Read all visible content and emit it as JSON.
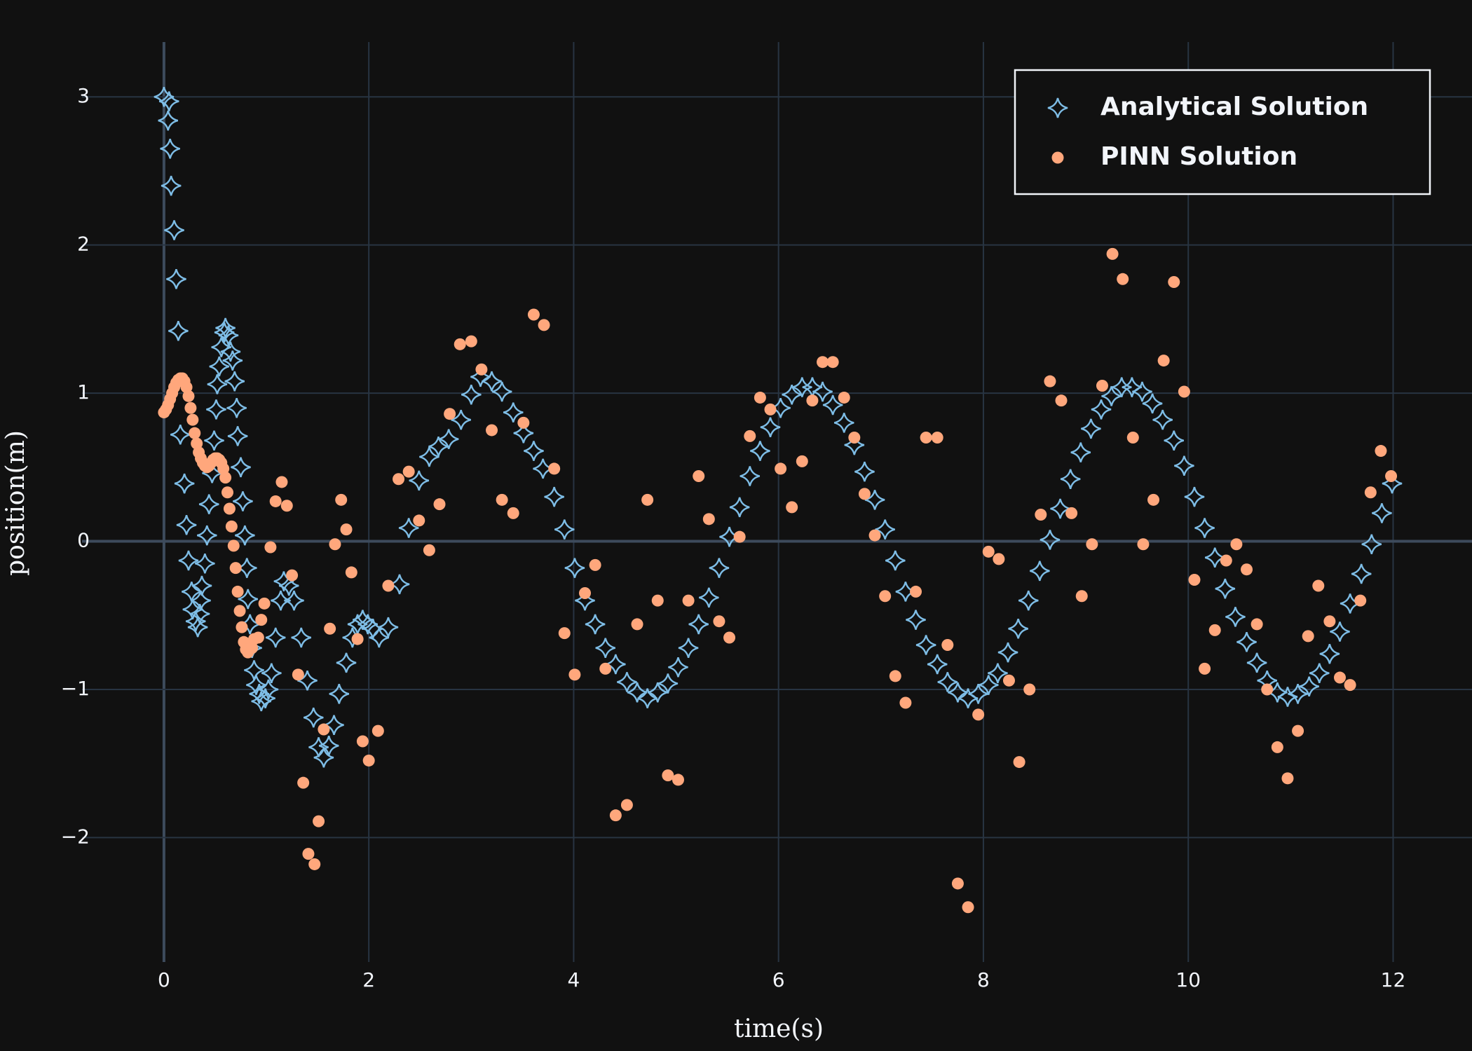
{
  "chart_data": {
    "type": "scatter",
    "x_label": "time(s)",
    "y_label": "position(m)",
    "xlim": [
      -0.8,
      12.77
    ],
    "ylim": [
      -2.84,
      3.37
    ],
    "xticks": [
      0,
      2,
      4,
      6,
      8,
      10,
      12
    ],
    "yticks": [
      {
        "value": -2,
        "label": "−2"
      },
      {
        "value": -1,
        "label": "−1"
      },
      0,
      1,
      2,
      3
    ],
    "grid": true,
    "zeroline": true,
    "legend_position": "top-right",
    "series": [
      {
        "name": "Analytical Solution",
        "color": "#7ebde6",
        "marker": "star-diamond-open",
        "x": [
          0,
          0.05,
          0.04,
          0.06,
          0.07,
          0.1,
          0.12,
          0.14,
          0.16,
          0.2,
          0.22,
          0.24,
          0.27,
          0.28,
          0.31,
          0.33,
          0.35,
          0.36,
          0.37,
          0.4,
          0.42,
          0.44,
          0.47,
          0.49,
          0.51,
          0.52,
          0.54,
          0.56,
          0.59,
          0.6,
          0.63,
          0.65,
          0.67,
          0.69,
          0.71,
          0.72,
          0.75,
          0.77,
          0.79,
          0.81,
          0.82,
          0.84,
          0.86,
          0.88,
          0.9,
          0.93,
          0.95,
          0.99,
          1.02,
          1.05,
          1.09,
          1.14,
          1.17,
          1.22,
          1.27,
          1.34,
          1.4,
          1.46,
          1.51,
          1.56,
          1.61,
          1.66,
          1.71,
          1.78,
          1.84,
          1.89,
          1.94,
          1.99,
          2.04,
          2.1,
          2.19,
          2.3,
          2.39,
          2.49,
          2.59,
          2.68,
          2.78,
          2.9,
          3.0,
          3.09,
          3.2,
          3.3,
          3.41,
          3.51,
          3.61,
          3.7,
          3.81,
          3.91,
          4.01,
          4.11,
          4.21,
          4.31,
          4.41,
          4.52,
          4.62,
          4.72,
          4.82,
          4.92,
          5.02,
          5.12,
          5.22,
          5.32,
          5.42,
          5.52,
          5.62,
          5.72,
          5.82,
          5.92,
          6.02,
          6.13,
          6.23,
          6.33,
          6.43,
          6.53,
          6.64,
          6.74,
          6.84,
          6.94,
          7.04,
          7.14,
          7.24,
          7.34,
          7.44,
          7.55,
          7.65,
          7.75,
          7.85,
          7.95,
          8.05,
          8.14,
          8.24,
          8.34,
          8.44,
          8.55,
          8.65,
          8.75,
          8.85,
          8.95,
          9.05,
          9.15,
          9.25,
          9.35,
          9.45,
          9.55,
          9.65,
          9.75,
          9.86,
          9.96,
          10.06,
          10.16,
          10.26,
          10.36,
          10.46,
          10.57,
          10.67,
          10.77,
          10.87,
          10.97,
          11.07,
          11.18,
          11.28,
          11.38,
          11.48,
          11.58,
          11.69,
          11.79,
          11.89,
          11.99
        ],
        "values": [
          3.0,
          2.97,
          2.84,
          2.65,
          2.4,
          2.1,
          1.77,
          1.42,
          0.72,
          0.39,
          0.11,
          -0.13,
          -0.34,
          -0.46,
          -0.54,
          -0.58,
          -0.49,
          -0.4,
          -0.3,
          -0.15,
          0.04,
          0.25,
          0.46,
          0.68,
          0.89,
          1.06,
          1.18,
          1.31,
          1.41,
          1.44,
          1.39,
          1.28,
          1.22,
          1.08,
          0.9,
          0.71,
          0.5,
          0.27,
          0.04,
          -0.18,
          -0.39,
          -0.56,
          -0.72,
          -0.87,
          -0.97,
          -1.03,
          -1.08,
          -1.06,
          -1.0,
          -0.89,
          -0.65,
          -0.4,
          -0.27,
          -0.3,
          -0.4,
          -0.65,
          -0.94,
          -1.19,
          -1.39,
          -1.46,
          -1.38,
          -1.24,
          -1.03,
          -0.82,
          -0.65,
          -0.56,
          -0.53,
          -0.56,
          -0.59,
          -0.65,
          -0.58,
          -0.29,
          0.09,
          0.41,
          0.57,
          0.64,
          0.69,
          0.82,
          0.99,
          1.11,
          1.08,
          1.01,
          0.87,
          0.73,
          0.61,
          0.49,
          0.3,
          0.08,
          -0.18,
          -0.4,
          -0.56,
          -0.72,
          -0.83,
          -0.95,
          -1.02,
          -1.06,
          -1.02,
          -0.96,
          -0.85,
          -0.72,
          -0.56,
          -0.38,
          -0.18,
          0.03,
          0.23,
          0.44,
          0.61,
          0.77,
          0.9,
          0.99,
          1.04,
          1.04,
          1.01,
          0.92,
          0.8,
          0.65,
          0.47,
          0.28,
          0.08,
          -0.13,
          -0.34,
          -0.53,
          -0.7,
          -0.83,
          -0.95,
          -1.02,
          -1.06,
          -1.03,
          -0.97,
          -0.89,
          -0.75,
          -0.59,
          -0.4,
          -0.2,
          0.01,
          0.22,
          0.42,
          0.6,
          0.76,
          0.89,
          0.98,
          1.04,
          1.04,
          1.01,
          0.93,
          0.82,
          0.68,
          0.51,
          0.3,
          0.09,
          -0.11,
          -0.32,
          -0.51,
          -0.68,
          -0.82,
          -0.94,
          -1.02,
          -1.05,
          -1.03,
          -0.98,
          -0.89,
          -0.76,
          -0.61,
          -0.42,
          -0.22,
          -0.02,
          0.19,
          0.39
        ]
      },
      {
        "name": "PINN Solution",
        "color": "#ffa77c",
        "marker": "circle",
        "x": [
          0,
          0.02,
          0.04,
          0.06,
          0.08,
          0.1,
          0.12,
          0.14,
          0.16,
          0.18,
          0.2,
          0.22,
          0.24,
          0.26,
          0.28,
          0.3,
          0.32,
          0.34,
          0.36,
          0.38,
          0.4,
          0.42,
          0.44,
          0.46,
          0.48,
          0.5,
          0.52,
          0.54,
          0.56,
          0.58,
          0.6,
          0.62,
          0.64,
          0.66,
          0.68,
          0.7,
          0.72,
          0.74,
          0.76,
          0.78,
          0.8,
          0.82,
          0.86,
          0.88,
          0.92,
          0.95,
          0.98,
          1.04,
          1.09,
          1.15,
          1.2,
          1.25,
          1.31,
          1.36,
          1.41,
          1.47,
          1.51,
          1.56,
          1.62,
          1.67,
          1.73,
          1.78,
          1.83,
          1.89,
          1.94,
          2.0,
          2.09,
          2.19,
          2.29,
          2.39,
          2.49,
          2.59,
          2.69,
          2.79,
          2.89,
          3.0,
          3.1,
          3.2,
          3.3,
          3.41,
          3.51,
          3.61,
          3.71,
          3.81,
          3.91,
          4.01,
          4.11,
          4.21,
          4.31,
          4.41,
          4.52,
          4.62,
          4.72,
          4.82,
          4.92,
          5.02,
          5.12,
          5.22,
          5.32,
          5.42,
          5.52,
          5.62,
          5.72,
          5.82,
          5.92,
          6.02,
          6.13,
          6.23,
          6.33,
          6.43,
          6.53,
          6.64,
          6.74,
          6.84,
          6.94,
          7.04,
          7.14,
          7.24,
          7.34,
          7.44,
          7.55,
          7.65,
          7.75,
          7.85,
          7.95,
          8.05,
          8.15,
          8.25,
          8.35,
          8.45,
          8.56,
          8.65,
          8.76,
          8.86,
          8.96,
          9.06,
          9.16,
          9.26,
          9.36,
          9.46,
          9.56,
          9.66,
          9.76,
          9.86,
          9.96,
          10.06,
          10.16,
          10.26,
          10.37,
          10.47,
          10.57,
          10.67,
          10.77,
          10.87,
          10.97,
          11.07,
          11.17,
          11.27,
          11.38,
          11.48,
          11.58,
          11.68,
          11.78,
          11.88,
          11.98
        ],
        "values": [
          0.87,
          0.89,
          0.92,
          0.96,
          1.0,
          1.04,
          1.07,
          1.09,
          1.1,
          1.1,
          1.08,
          1.04,
          0.98,
          0.9,
          0.82,
          0.73,
          0.66,
          0.6,
          0.56,
          0.53,
          0.51,
          0.5,
          0.51,
          0.53,
          0.55,
          0.56,
          0.56,
          0.55,
          0.53,
          0.49,
          0.43,
          0.33,
          0.22,
          0.1,
          -0.03,
          -0.18,
          -0.34,
          -0.47,
          -0.58,
          -0.68,
          -0.73,
          -0.75,
          -0.72,
          -0.66,
          -0.65,
          -0.53,
          -0.42,
          -0.04,
          0.27,
          0.4,
          0.24,
          -0.23,
          -0.9,
          -1.63,
          -2.11,
          -2.18,
          -1.89,
          -1.27,
          -0.59,
          -0.02,
          0.28,
          0.08,
          -0.21,
          -0.66,
          -1.35,
          -1.48,
          -1.28,
          -0.3,
          0.42,
          0.47,
          0.14,
          -0.06,
          0.25,
          0.86,
          1.33,
          1.35,
          1.16,
          0.75,
          0.28,
          0.19,
          0.8,
          1.53,
          1.46,
          0.49,
          -0.62,
          -0.9,
          -0.35,
          -0.16,
          -0.86,
          -1.85,
          -1.78,
          -0.56,
          0.28,
          -0.4,
          -1.58,
          -1.61,
          -0.4,
          0.44,
          0.15,
          -0.54,
          -0.65,
          0.03,
          0.71,
          0.97,
          0.89,
          0.49,
          0.23,
          0.54,
          0.95,
          1.21,
          1.21,
          0.97,
          0.7,
          0.32,
          0.04,
          -0.37,
          -0.91,
          -1.09,
          -0.34,
          0.7,
          0.7,
          -0.7,
          -2.31,
          -2.47,
          -1.17,
          -0.07,
          -0.12,
          -0.94,
          -1.49,
          -1.0,
          0.18,
          1.08,
          0.95,
          0.19,
          -0.37,
          -0.02,
          1.05,
          1.94,
          1.77,
          0.7,
          -0.02,
          0.28,
          1.22,
          1.75,
          1.01,
          -0.26,
          -0.86,
          -0.6,
          -0.13,
          -0.02,
          -0.19,
          -0.56,
          -1.0,
          -1.39,
          -1.6,
          -1.28,
          -0.64,
          -0.3,
          -0.54,
          -0.92,
          -0.97,
          -0.4,
          0.33,
          0.61,
          0.44
        ]
      }
    ]
  }
}
